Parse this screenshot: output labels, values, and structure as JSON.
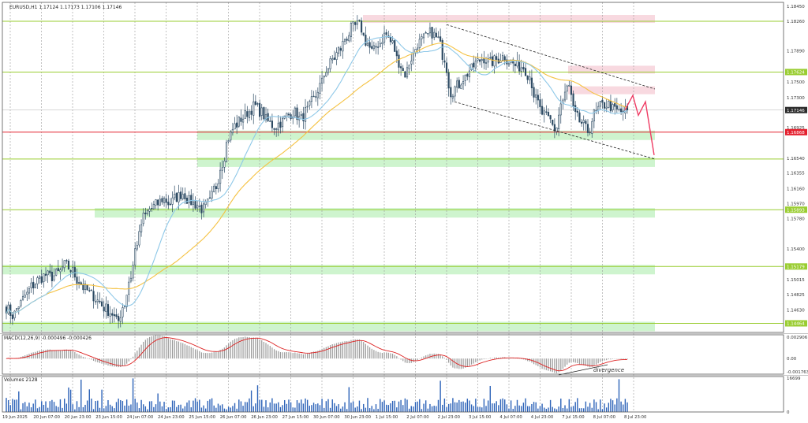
{
  "chart_data": [
    {
      "type": "candlestick",
      "pane": "price",
      "header_text": "EURUSD,H1  1.17124 1.17173 1.17106 1.17146",
      "price_axis_ticks": [
        "1.18450",
        "1.18260",
        "1.17890",
        "1.17624",
        "1.17500",
        "1.17300",
        "1.17146",
        "1.16925",
        "1.16868",
        "1.16540",
        "1.16355",
        "1.16160",
        "1.15970",
        "1.15893",
        "1.15780",
        "1.15400",
        "1.15179",
        "1.15015",
        "1.14825",
        "1.14630",
        "1.14464"
      ],
      "ylim": [
        1.1435,
        1.185
      ],
      "last_price": 1.17146,
      "horizontal_levels": [
        {
          "value": 1.18262,
          "label": "1.18262",
          "color": "#9acd32"
        },
        {
          "value": 1.17624,
          "label": "1.17624",
          "color": "#9acd32"
        },
        {
          "value": 1.16868,
          "label": "1.16868",
          "color": "#e4202e"
        },
        {
          "value": 1.1653,
          "label": "1.16530",
          "color": "#9acd32"
        },
        {
          "value": 1.15893,
          "label": "1.15893",
          "color": "#9acd32"
        },
        {
          "value": 1.15179,
          "label": "1.15179",
          "color": "#9acd32"
        },
        {
          "value": 1.14464,
          "label": "1.14464",
          "color": "#9acd32"
        }
      ],
      "x_ticks": [
        "19 Jun 2025",
        "20 Jun 07:00",
        "20 Jun 23:00",
        "23 Jun 15:00",
        "24 Jun 07:00",
        "24 Jun 23:00",
        "25 Jun 15:00",
        "26 Jun 07:00",
        "26 Jun 23:00",
        "27 Jun 15:00",
        "30 Jun 07:00",
        "30 Jun 23:00",
        "1 Jul 15:00",
        "2 Jul 07:00",
        "2 Jul 23:00",
        "3 Jul 15:00",
        "4 Jul 07:00",
        "4 Jul 23:00",
        "7 Jul 15:00",
        "8 Jul 07:00",
        "8 Jul 23:00"
      ],
      "series_trend": {
        "start_price": 1.1466,
        "low_price": 1.1446,
        "high_price": 1.183,
        "end_price": 1.17146,
        "path": [
          1.1466,
          1.1456,
          1.147,
          1.1482,
          1.1494,
          1.1502,
          1.1507,
          1.1505,
          1.151,
          1.152,
          1.1513,
          1.15,
          1.149,
          1.1483,
          1.1475,
          1.1466,
          1.146,
          1.1448,
          1.147,
          1.1505,
          1.1548,
          1.158,
          1.159,
          1.1596,
          1.1603,
          1.1597,
          1.1605,
          1.161,
          1.16,
          1.1596,
          1.159,
          1.1598,
          1.1618,
          1.1648,
          1.168,
          1.1695,
          1.1704,
          1.1712,
          1.172,
          1.1712,
          1.17,
          1.1694,
          1.1699,
          1.1708,
          1.1712,
          1.1703,
          1.1714,
          1.1728,
          1.1745,
          1.1766,
          1.1779,
          1.1791,
          1.1806,
          1.1819,
          1.1822,
          1.1801,
          1.1788,
          1.1798,
          1.181,
          1.1799,
          1.1775,
          1.176,
          1.178,
          1.1799,
          1.1805,
          1.1812,
          1.1804,
          1.178,
          1.1737,
          1.1745,
          1.1755,
          1.1765,
          1.1775,
          1.178,
          1.1774,
          1.1778,
          1.1782,
          1.1776,
          1.177,
          1.1769,
          1.1758,
          1.1728,
          1.171,
          1.1703,
          1.169,
          1.1725,
          1.1745,
          1.1708,
          1.1698,
          1.1688,
          1.171,
          1.172,
          1.1722,
          1.1715,
          1.1712,
          1.17146
        ]
      },
      "moving_averages": [
        {
          "color": "#f5c242"
        },
        {
          "color": "#8ec8e8"
        }
      ],
      "zones": {
        "support": [
          1.16868,
          1.1653,
          1.15893,
          1.15179,
          1.14464
        ],
        "resistance": [
          1.18262,
          1.17624,
          1.17365
        ]
      },
      "projection_path": [
        1.17146,
        1.1733,
        1.1708,
        1.1725,
        1.1658
      ]
    },
    {
      "type": "histogram",
      "pane": "macd",
      "header_text": "MACD(12,26,9) -0.000496 -0.000426",
      "axis_ticks": [
        "0.002906",
        "0.00",
        "-0.001763"
      ],
      "ylim": [
        -0.0021,
        0.0032
      ],
      "annotation": "divergence"
    },
    {
      "type": "bar",
      "pane": "volume",
      "header_text": "Volumes 2128",
      "axis_ticks": [
        "16699",
        "0"
      ],
      "ylim": [
        0,
        16699
      ]
    }
  ]
}
